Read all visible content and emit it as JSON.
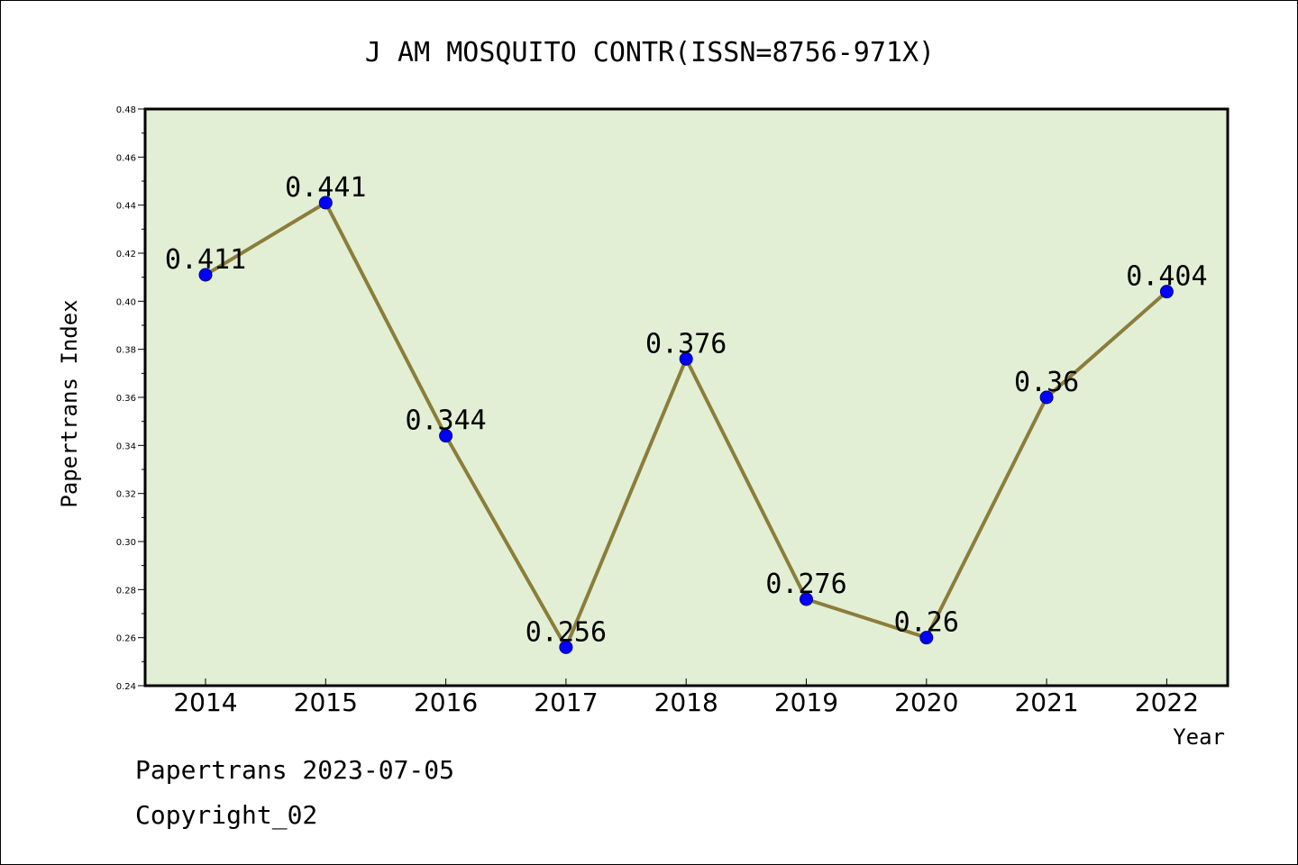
{
  "chart_data": {
    "type": "line",
    "title": "J AM MOSQUITO CONTR(ISSN=8756-971X)",
    "xlabel": "Year",
    "ylabel": "Papertrans Index",
    "categories": [
      "2014",
      "2015",
      "2016",
      "2017",
      "2018",
      "2019",
      "2020",
      "2021",
      "2022"
    ],
    "values": [
      0.411,
      0.441,
      0.344,
      0.256,
      0.376,
      0.276,
      0.26,
      0.36,
      0.404
    ],
    "data_labels": [
      "0.411",
      "0.441",
      "0.344",
      "0.256",
      "0.376",
      "0.276",
      "0.26",
      "0.36",
      "0.404"
    ],
    "ylim": [
      0.24,
      0.48
    ],
    "yticks": [
      "0.24",
      "0.26",
      "0.28",
      "0.30",
      "0.32",
      "0.34",
      "0.36",
      "0.38",
      "0.40",
      "0.42",
      "0.44",
      "0.46",
      "0.48"
    ],
    "grid": false,
    "colors": {
      "plot_background": "#e2efd5",
      "line": "#8b7d3a",
      "marker": "#0000ff"
    }
  },
  "footer": {
    "line1": "Papertrans 2023-07-05",
    "line2": "Copyright_02"
  }
}
